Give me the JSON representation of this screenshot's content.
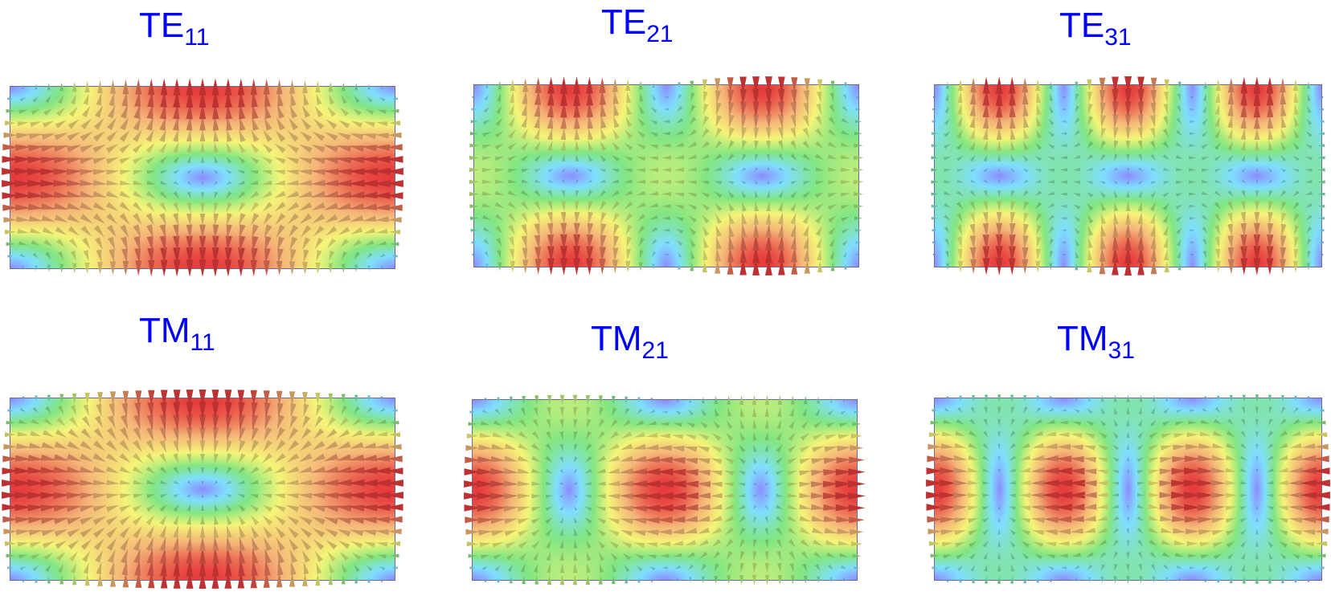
{
  "panels": [
    {
      "base": "TE",
      "sub": "11",
      "m": 1,
      "n": 1,
      "mode": "TE"
    },
    {
      "base": "TE",
      "sub": "21",
      "m": 2,
      "n": 1,
      "mode": "TE"
    },
    {
      "base": "TE",
      "sub": "31",
      "m": 3,
      "n": 1,
      "mode": "TE"
    },
    {
      "base": "TM",
      "sub": "11",
      "m": 1,
      "n": 1,
      "mode": "TM"
    },
    {
      "base": "TM",
      "sub": "21",
      "m": 2,
      "n": 1,
      "mode": "TM"
    },
    {
      "base": "TM",
      "sub": "31",
      "m": 3,
      "n": 1,
      "mode": "TM"
    }
  ],
  "colors": {
    "title": "#0000ff",
    "colormap": [
      "#8c8cff",
      "#7fdfff",
      "#82e682",
      "#f5f578",
      "#f5b478",
      "#e63c3c"
    ]
  }
}
